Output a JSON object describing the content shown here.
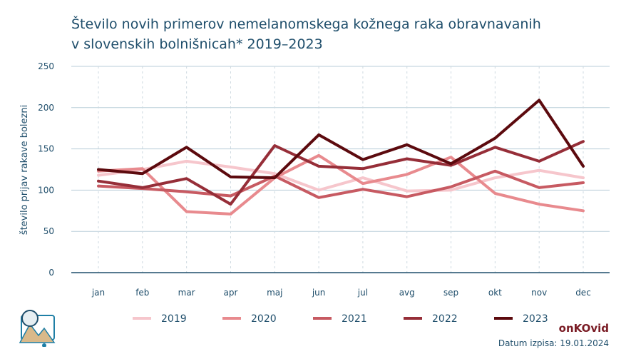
{
  "title_line1": "Število novih primerov nemelanomskega kožnega raka obravnavanih",
  "title_line2": "v slovenskih bolnišnicah* 2019–2023",
  "brand": "onKOvid",
  "printed": "Datum izpisa: 19.01.2024",
  "chart_data": {
    "type": "line",
    "title": "Število novih primerov nemelanomskega kožnega raka obravnavanih v slovenskih bolnišnicah* 2019–2023",
    "xlabel": "",
    "ylabel": "število prijav rakave bolezni",
    "ylim": [
      0,
      250
    ],
    "yticks": [
      0,
      50,
      100,
      150,
      200,
      250
    ],
    "grid": true,
    "legend_position": "bottom",
    "categories": [
      "jan",
      "feb",
      "mar",
      "apr",
      "maj",
      "jun",
      "jul",
      "avg",
      "sep",
      "okt",
      "nov",
      "dec"
    ],
    "series": [
      {
        "name": "2019",
        "color": "#f6c6cc",
        "values": [
          118,
          125,
          135,
          128,
          120,
          100,
          115,
          99,
          100,
          115,
          124,
          115
        ]
      },
      {
        "name": "2020",
        "color": "#e88a8e",
        "values": [
          123,
          126,
          74,
          71,
          115,
          142,
          108,
          119,
          140,
          96,
          83,
          75
        ]
      },
      {
        "name": "2021",
        "color": "#c75a62",
        "values": [
          105,
          102,
          98,
          93,
          117,
          91,
          101,
          92,
          104,
          123,
          103,
          109
        ]
      },
      {
        "name": "2022",
        "color": "#962e38",
        "values": [
          111,
          103,
          114,
          83,
          154,
          129,
          126,
          138,
          130,
          152,
          135,
          159
        ]
      },
      {
        "name": "2023",
        "color": "#5c0a0e",
        "values": [
          125,
          120,
          152,
          116,
          115,
          167,
          137,
          155,
          132,
          163,
          209,
          129
        ]
      }
    ]
  }
}
